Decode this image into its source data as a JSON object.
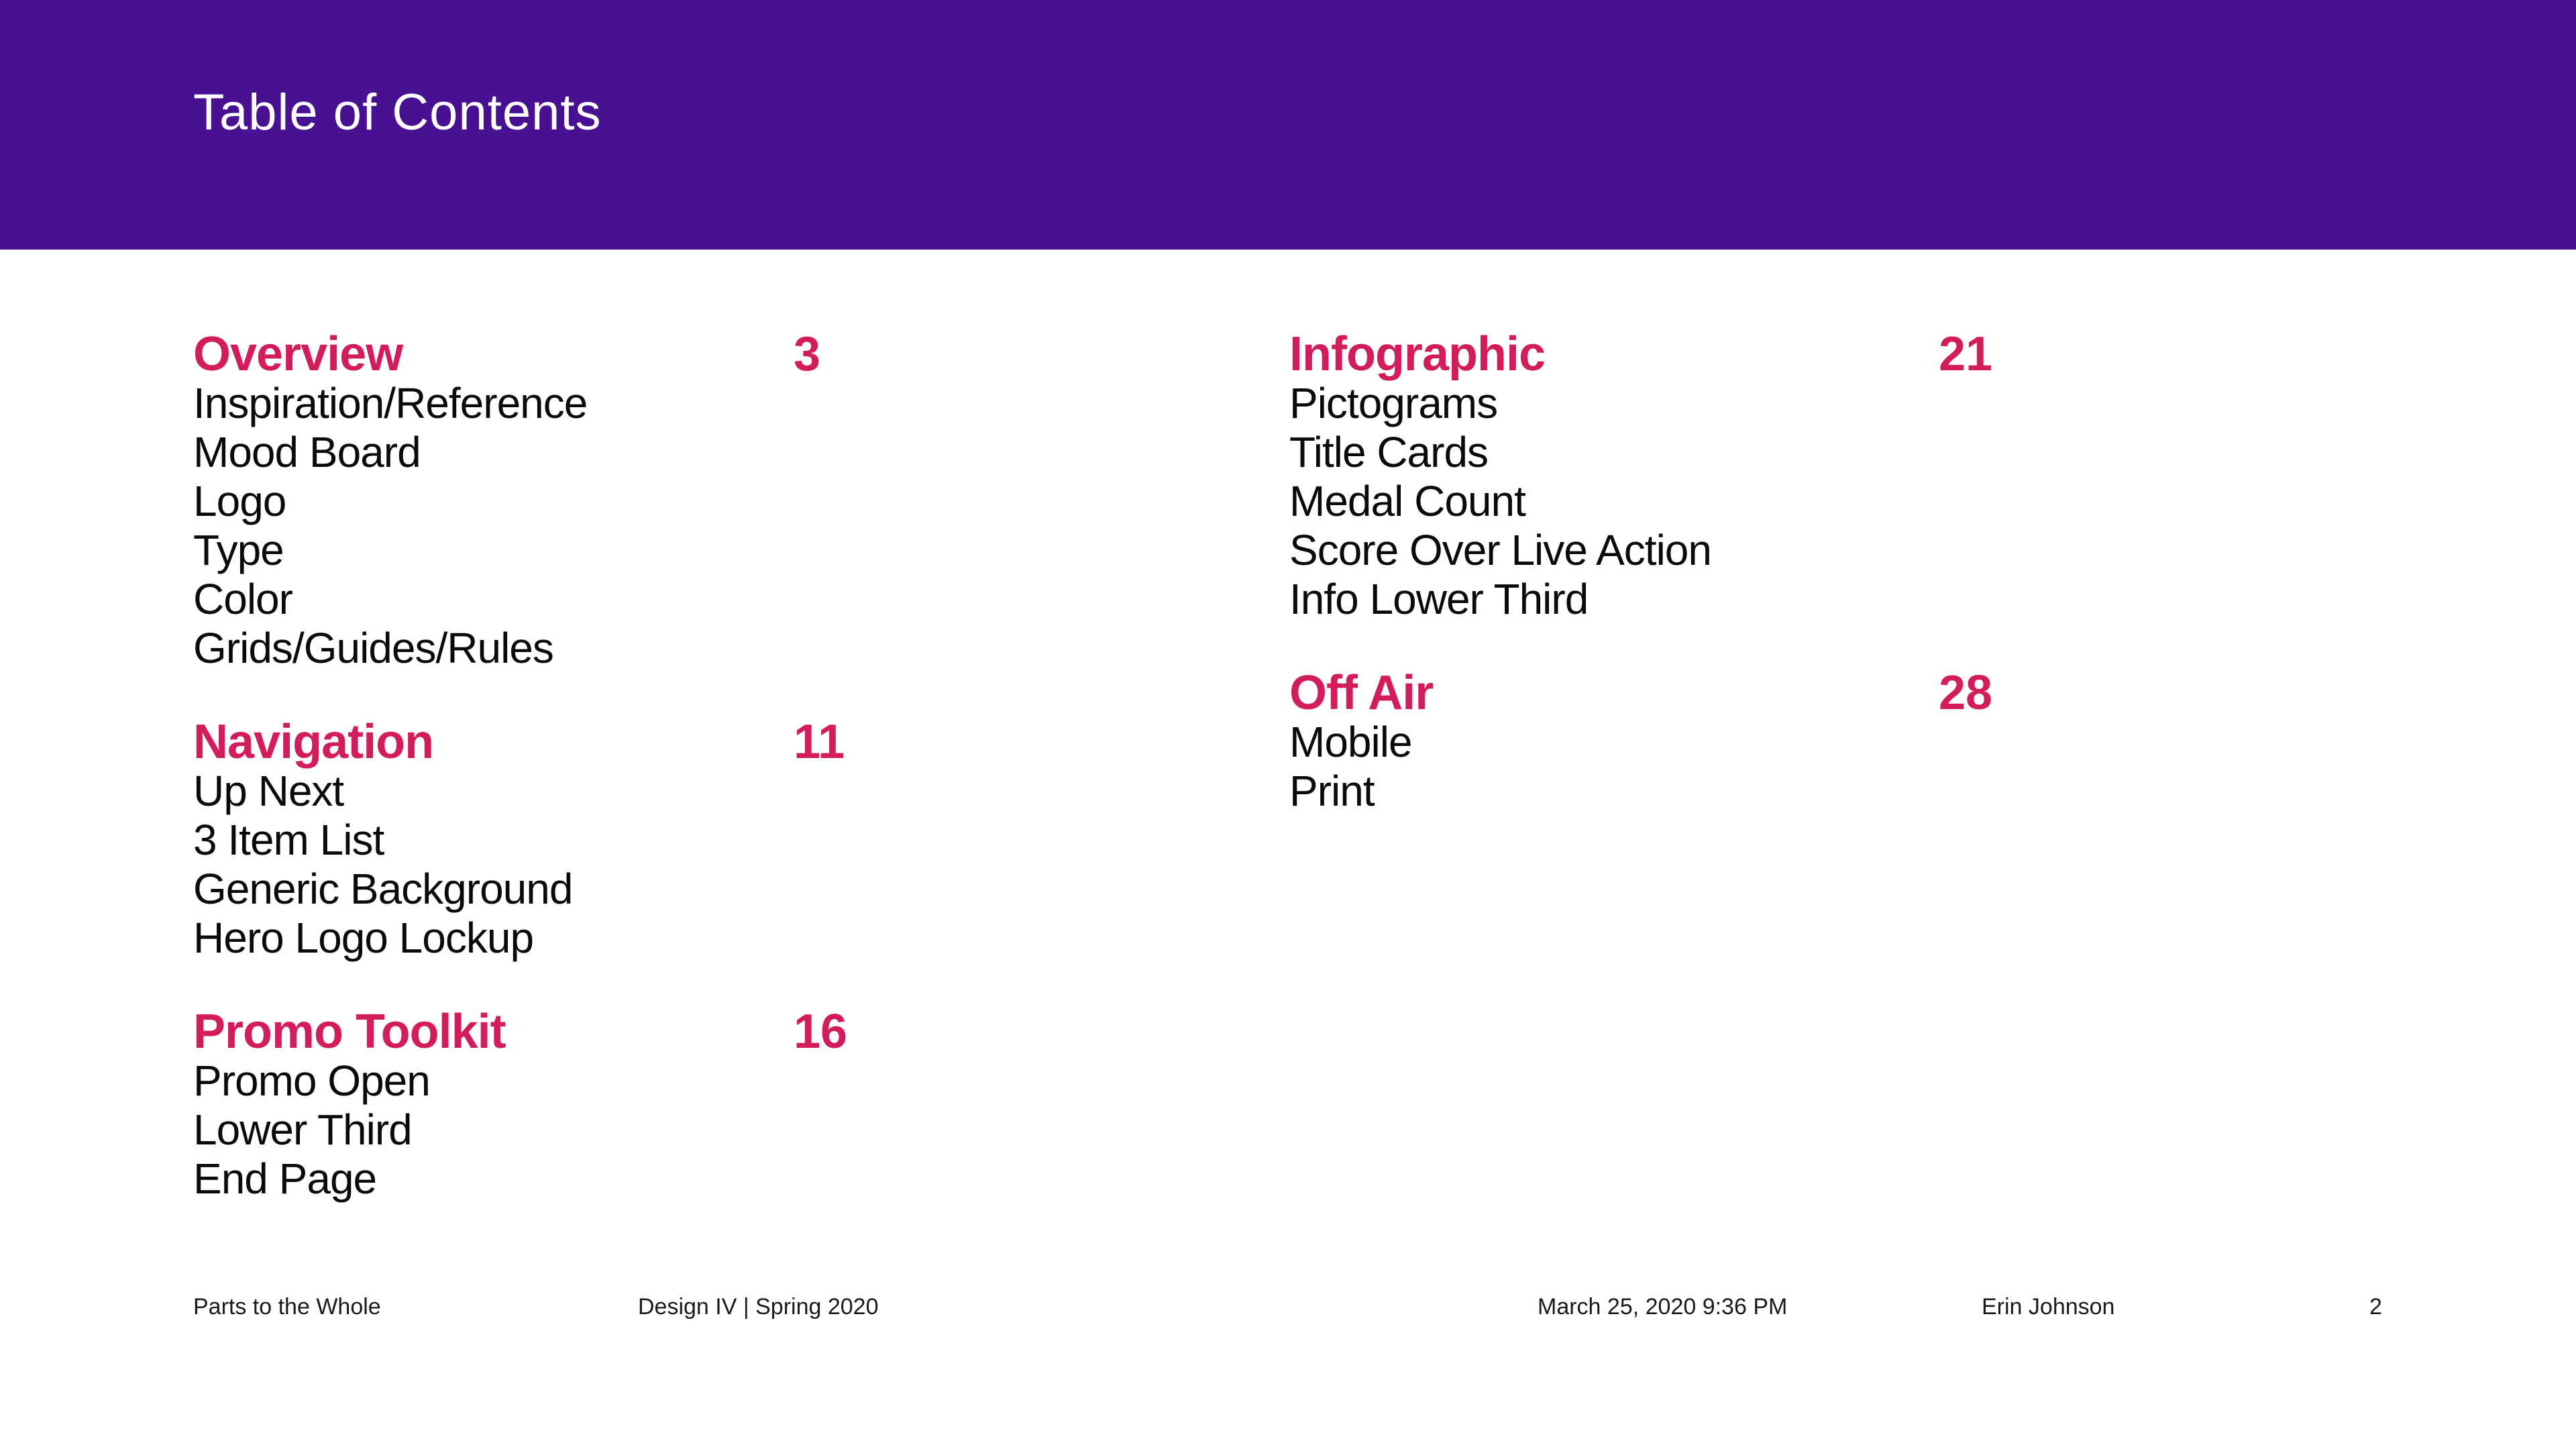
{
  "header": {
    "title": "Table of Contents",
    "background_color": "#471191",
    "text_color": "#ffffff"
  },
  "colors": {
    "accent_pink": "#D21C5C",
    "body_text": "#0a0a0a",
    "footer_text": "#1a1a1a"
  },
  "toc": {
    "columns": [
      {
        "sections": [
          {
            "title": "Overview",
            "page": "3",
            "items": [
              "Inspiration/Reference",
              "Mood Board",
              "Logo",
              "Type",
              "Color",
              "Grids/Guides/Rules"
            ]
          },
          {
            "title": "Navigation",
            "page": "11",
            "items": [
              "Up Next",
              "3 Item List",
              "Generic Background",
              "Hero Logo Lockup"
            ]
          },
          {
            "title": "Promo Toolkit",
            "page": "16",
            "items": [
              "Promo Open",
              "Lower Third",
              "End Page"
            ]
          }
        ]
      },
      {
        "sections": [
          {
            "title": "Infographic",
            "page": "21",
            "items": [
              "Pictograms",
              "Title Cards",
              "Medal Count",
              "Score Over Live Action",
              "Info Lower Third"
            ]
          },
          {
            "title": "Off Air",
            "page": "28",
            "items": [
              "Mobile",
              "Print"
            ]
          }
        ]
      }
    ]
  },
  "footer": {
    "project": "Parts to the Whole",
    "course": "Design IV | Spring 2020",
    "timestamp": "March 25, 2020 9:36 PM",
    "author": "Erin Johnson",
    "page_number": "2"
  }
}
